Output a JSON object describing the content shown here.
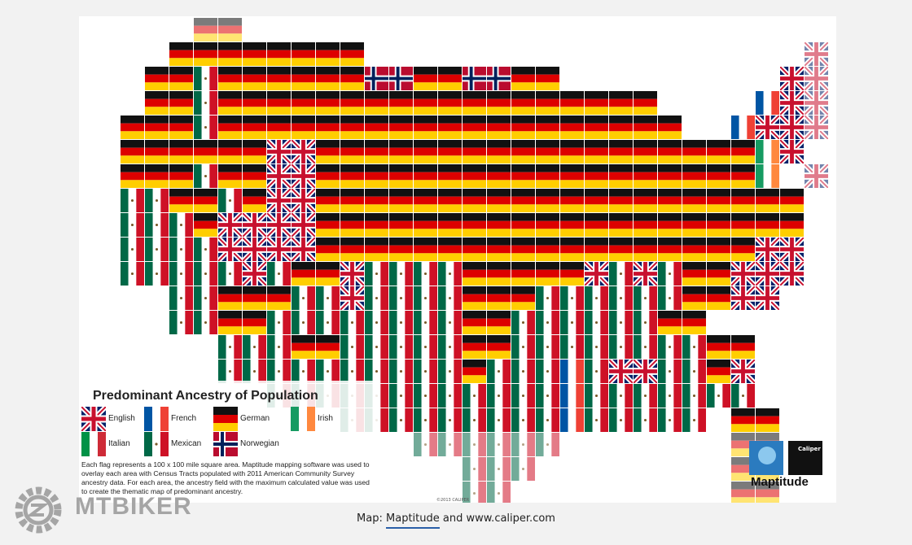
{
  "map": {
    "title": "Predominant Ancestry of Population",
    "legend": [
      "English",
      "French",
      "German",
      "Irish",
      "Italian",
      "Mexican",
      "Norwegian"
    ],
    "description": "Each flag represents a 100 x 100 mile square area. Maptitude mapping software was used to overlay each area with Census Tracts populated with 2011 American Community Survey ancestry data. For each area, the ancestry field with the maximum calculated value was used to create the thematic map of predominant ancestry.",
    "copyright": "©2013 CALIPER",
    "logo": {
      "brand": "Caliper",
      "product": "Maptitude"
    }
  },
  "site": {
    "logo": "MTBIKER"
  },
  "caption": {
    "prefix": "Map:",
    "link": "Maptitude",
    "suffix": "and www.caliper.com"
  }
}
